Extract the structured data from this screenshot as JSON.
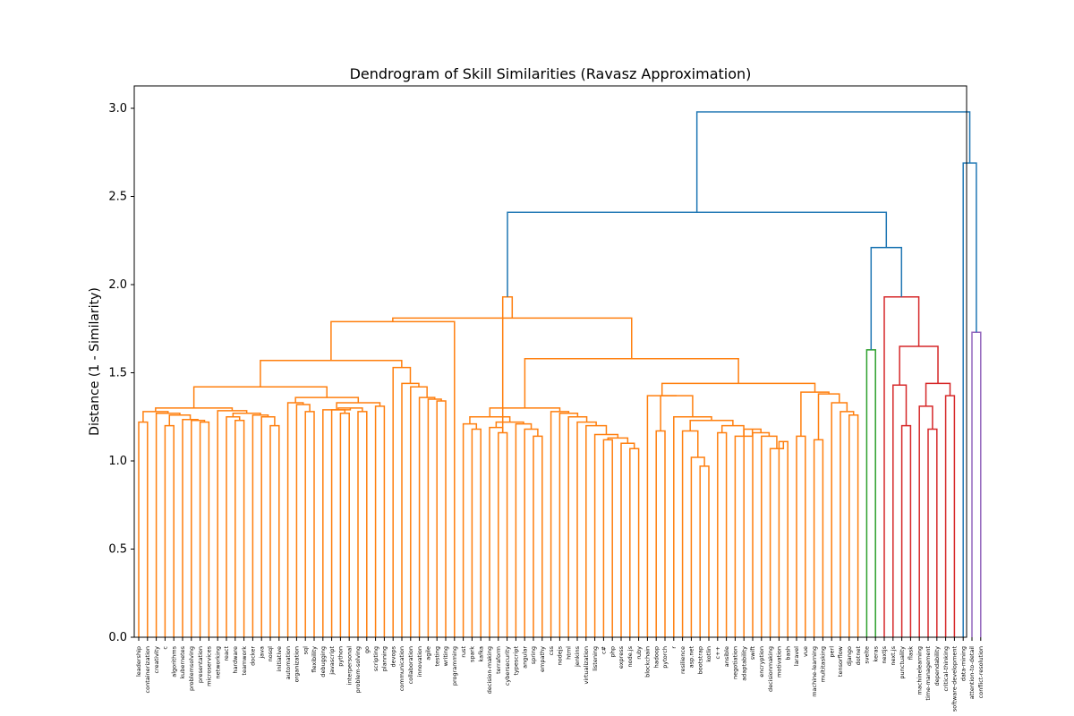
{
  "chart_data": {
    "type": "dendrogram",
    "title": "Dendrogram of Skill Similarities (Ravasz Approximation)",
    "xlabel": "",
    "ylabel": "Distance (1 - Similarity)",
    "ylim": [
      0,
      3.1
    ],
    "yticks": [
      "0.0",
      "0.5",
      "1.0",
      "1.5",
      "2.0",
      "2.5",
      "3.0"
    ],
    "colors": {
      "orange": "#ff7f0e",
      "blue": "#1f77b4",
      "green": "#2ca02c",
      "red": "#d62728",
      "purple": "#9467bd"
    },
    "leaves": [
      "leadership",
      "containerization",
      "creativity",
      "c",
      "algorithms",
      "kubernetes",
      "problemsolving",
      "presentation",
      "microservices",
      "networking",
      "react",
      "hardware",
      "teamwork",
      "docker",
      "java",
      "nosql",
      "initiative",
      "automation",
      "organization",
      "sql",
      "flexibility",
      "debugging",
      "javascript",
      "python",
      "interpersonal",
      "problem-solving",
      "go",
      "scripting",
      "planning",
      "devops",
      "communication",
      "collaboration",
      "innovation",
      "agile",
      "testing",
      "writing",
      "programming",
      "rust",
      "spark",
      "kafka",
      "decision-making",
      "terraform",
      "cybersecurity",
      "typescript",
      "angular",
      "spring",
      "empathy",
      "css",
      "nodejs",
      "html",
      "jenkins",
      "virtualization",
      "listening",
      "c#",
      "php",
      "express",
      "node.js",
      "ruby",
      "blockchain",
      "hadoop",
      "pytorch",
      "r",
      "resilience",
      "asp.net",
      "bootstrap",
      "kotlin",
      "c++",
      "ansible",
      "negotiation",
      "adaptability",
      "swift",
      "encryption",
      "decisionmaking",
      "motivation",
      "bash",
      "laravel",
      "vue",
      "machine-learning",
      "multitasking",
      "perl",
      "tensorflow",
      "django",
      "dotnet",
      "svelte",
      "keras",
      "nextjs",
      "next.js",
      "punctuality",
      "flask",
      "machinelearning",
      "time-management",
      "dependability",
      "critical-thinking",
      "software-development",
      "data-mining",
      "attention-to-detail",
      "conflict-resolution"
    ],
    "links": [
      {
        "l": 0,
        "r": 1,
        "h": 1.22,
        "c": "orange"
      },
      {
        "l": 3,
        "r": 4,
        "h": 1.2,
        "c": "orange"
      },
      {
        "l": 7,
        "r": 8,
        "h": 1.22,
        "c": "orange"
      },
      {
        "l": 6,
        "r": 99,
        "h": 1.23,
        "c": "orange"
      },
      {
        "l": 5,
        "r": 100,
        "h": 1.235,
        "c": "orange"
      },
      {
        "l": 98,
        "r": 101,
        "h": 1.26,
        "c": "orange"
      },
      {
        "l": 2,
        "r": 102,
        "h": 1.27,
        "c": "orange"
      },
      {
        "l": 97,
        "r": 103,
        "h": 1.28,
        "c": "orange"
      },
      {
        "l": 11,
        "r": 12,
        "h": 1.23,
        "c": "orange"
      },
      {
        "l": 10,
        "r": 105,
        "h": 1.25,
        "c": "orange"
      },
      {
        "l": 15,
        "r": 16,
        "h": 1.2,
        "c": "orange"
      },
      {
        "l": 14,
        "r": 107,
        "h": 1.25,
        "c": "orange"
      },
      {
        "l": 13,
        "r": 108,
        "h": 1.26,
        "c": "orange"
      },
      {
        "l": 106,
        "r": 109,
        "h": 1.27,
        "c": "orange"
      },
      {
        "l": 9,
        "r": 110,
        "h": 1.285,
        "c": "orange"
      },
      {
        "l": 104,
        "r": 111,
        "h": 1.3,
        "c": "orange"
      },
      {
        "l": 19,
        "r": 20,
        "h": 1.28,
        "c": "orange"
      },
      {
        "l": 18,
        "r": 113,
        "h": 1.32,
        "c": "orange"
      },
      {
        "l": 17,
        "r": 114,
        "h": 1.33,
        "c": "orange"
      },
      {
        "l": 23,
        "r": 24,
        "h": 1.27,
        "c": "orange"
      },
      {
        "l": 22,
        "r": 116,
        "h": 1.29,
        "c": "orange"
      },
      {
        "l": 25,
        "r": 26,
        "h": 1.28,
        "c": "orange"
      },
      {
        "l": 117,
        "r": 118,
        "h": 1.3,
        "c": "orange"
      },
      {
        "l": 21,
        "r": 119,
        "h": 1.29,
        "c": "orange"
      },
      {
        "l": 27,
        "r": 28,
        "h": 1.31,
        "c": "orange"
      },
      {
        "l": 120,
        "r": 121,
        "h": 1.33,
        "c": "orange"
      },
      {
        "l": 115,
        "r": 122,
        "h": 1.36,
        "c": "orange"
      },
      {
        "l": 112,
        "r": 123,
        "h": 1.42,
        "c": "orange"
      },
      {
        "l": 34,
        "r": 35,
        "h": 1.34,
        "c": "orange"
      },
      {
        "l": 33,
        "r": 125,
        "h": 1.35,
        "c": "orange"
      },
      {
        "l": 32,
        "r": 126,
        "h": 1.36,
        "c": "orange"
      },
      {
        "l": 31,
        "r": 127,
        "h": 1.42,
        "c": "orange"
      },
      {
        "l": 30,
        "r": 128,
        "h": 1.44,
        "c": "orange"
      },
      {
        "l": 29,
        "r": 129,
        "h": 1.53,
        "c": "orange"
      },
      {
        "l": 124,
        "r": 130,
        "h": 1.57,
        "c": "orange"
      },
      {
        "l": 36,
        "r": 131,
        "h": 1.79,
        "c": "orange"
      },
      {
        "l": 38,
        "r": 39,
        "h": 1.18,
        "c": "orange"
      },
      {
        "l": 37,
        "r": 133,
        "h": 1.21,
        "c": "orange"
      },
      {
        "l": 41,
        "r": 42,
        "h": 1.16,
        "c": "orange"
      },
      {
        "l": 40,
        "r": 135,
        "h": 1.19,
        "c": "orange"
      },
      {
        "l": 45,
        "r": 46,
        "h": 1.14,
        "c": "orange"
      },
      {
        "l": 44,
        "r": 137,
        "h": 1.18,
        "c": "orange"
      },
      {
        "l": 43,
        "r": 138,
        "h": 1.21,
        "c": "orange"
      },
      {
        "l": 136,
        "r": 139,
        "h": 1.22,
        "c": "orange"
      },
      {
        "l": 134,
        "r": 140,
        "h": 1.25,
        "c": "orange"
      },
      {
        "l": 53,
        "r": 54,
        "h": 1.12,
        "c": "orange"
      },
      {
        "l": 56,
        "r": 57,
        "h": 1.07,
        "c": "orange"
      },
      {
        "l": 55,
        "r": 143,
        "h": 1.1,
        "c": "orange"
      },
      {
        "l": 142,
        "r": 144,
        "h": 1.13,
        "c": "orange"
      },
      {
        "l": 52,
        "r": 145,
        "h": 1.15,
        "c": "orange"
      },
      {
        "l": 51,
        "r": 146,
        "h": 1.2,
        "c": "orange"
      },
      {
        "l": 50,
        "r": 147,
        "h": 1.22,
        "c": "orange"
      },
      {
        "l": 49,
        "r": 148,
        "h": 1.25,
        "c": "orange"
      },
      {
        "l": 48,
        "r": 149,
        "h": 1.27,
        "c": "orange"
      },
      {
        "l": 47,
        "r": 150,
        "h": 1.28,
        "c": "orange"
      },
      {
        "l": 141,
        "r": 151,
        "h": 1.3,
        "c": "orange"
      },
      {
        "l": 59,
        "r": 60,
        "h": 1.17,
        "c": "orange"
      },
      {
        "l": 64,
        "r": 65,
        "h": 0.97,
        "c": "orange"
      },
      {
        "l": 63,
        "r": 154,
        "h": 1.02,
        "c": "orange"
      },
      {
        "l": 62,
        "r": 155,
        "h": 1.17,
        "c": "orange"
      },
      {
        "l": 66,
        "r": 67,
        "h": 1.16,
        "c": "orange"
      },
      {
        "l": 73,
        "r": 74,
        "h": 1.11,
        "c": "orange"
      },
      {
        "l": 72,
        "r": 158,
        "h": 1.07,
        "c": "orange"
      },
      {
        "l": 71,
        "r": 159,
        "h": 1.14,
        "c": "orange"
      },
      {
        "l": 70,
        "r": 160,
        "h": 1.16,
        "c": "orange"
      },
      {
        "l": 69,
        "r": 161,
        "h": 1.18,
        "c": "orange"
      },
      {
        "l": 68,
        "r": 162,
        "h": 1.14,
        "c": "orange"
      },
      {
        "l": 157,
        "r": 163,
        "h": 1.2,
        "c": "orange"
      },
      {
        "l": 156,
        "r": 164,
        "h": 1.23,
        "c": "orange"
      },
      {
        "l": 61,
        "r": 165,
        "h": 1.25,
        "c": "orange"
      },
      {
        "l": 153,
        "r": 166,
        "h": 1.37,
        "c": "orange"
      },
      {
        "l": 58,
        "r": 167,
        "h": 1.37,
        "c": "orange"
      },
      {
        "l": 77,
        "r": 78,
        "h": 1.12,
        "c": "orange"
      },
      {
        "l": 81,
        "r": 82,
        "h": 1.26,
        "c": "orange"
      },
      {
        "l": 80,
        "r": 170,
        "h": 1.28,
        "c": "orange"
      },
      {
        "l": 79,
        "r": 171,
        "h": 1.33,
        "c": "orange"
      },
      {
        "l": 169,
        "r": 172,
        "h": 1.38,
        "c": "orange"
      },
      {
        "l": 75,
        "r": 76,
        "h": 1.14,
        "c": "orange"
      },
      {
        "l": 173,
        "r": 174,
        "h": 1.39,
        "c": "orange"
      },
      {
        "l": 168,
        "r": 175,
        "h": 1.44,
        "c": "orange"
      },
      {
        "l": 152,
        "r": 176,
        "h": 1.58,
        "c": "orange"
      },
      {
        "l": 132,
        "r": 177,
        "h": 1.81,
        "c": "orange"
      },
      {
        "l": 135,
        "r": 178,
        "h": 1.93,
        "c": "orange"
      },
      {
        "l": 83,
        "r": 84,
        "h": 1.63,
        "c": "green"
      },
      {
        "l": 87,
        "r": 88,
        "h": 1.2,
        "c": "red"
      },
      {
        "l": 86,
        "r": 181,
        "h": 1.43,
        "c": "red"
      },
      {
        "l": 90,
        "r": 91,
        "h": 1.18,
        "c": "red"
      },
      {
        "l": 89,
        "r": 183,
        "h": 1.31,
        "c": "red"
      },
      {
        "l": 92,
        "r": 93,
        "h": 1.37,
        "c": "red"
      },
      {
        "l": 184,
        "r": 185,
        "h": 1.44,
        "c": "red"
      },
      {
        "l": 182,
        "r": 186,
        "h": 1.65,
        "c": "red"
      },
      {
        "l": 85,
        "r": 187,
        "h": 1.93,
        "c": "red"
      },
      {
        "l": 180,
        "r": 188,
        "h": 2.21,
        "c": "blue"
      },
      {
        "l": 179,
        "r": 189,
        "h": 2.41,
        "c": "blue"
      },
      {
        "l": 95,
        "r": 96,
        "h": 1.73,
        "c": "purple"
      },
      {
        "l": 94,
        "r": 191,
        "h": 2.69,
        "c": "blue"
      },
      {
        "l": 190,
        "r": 192,
        "h": 2.98,
        "c": "blue"
      }
    ]
  }
}
